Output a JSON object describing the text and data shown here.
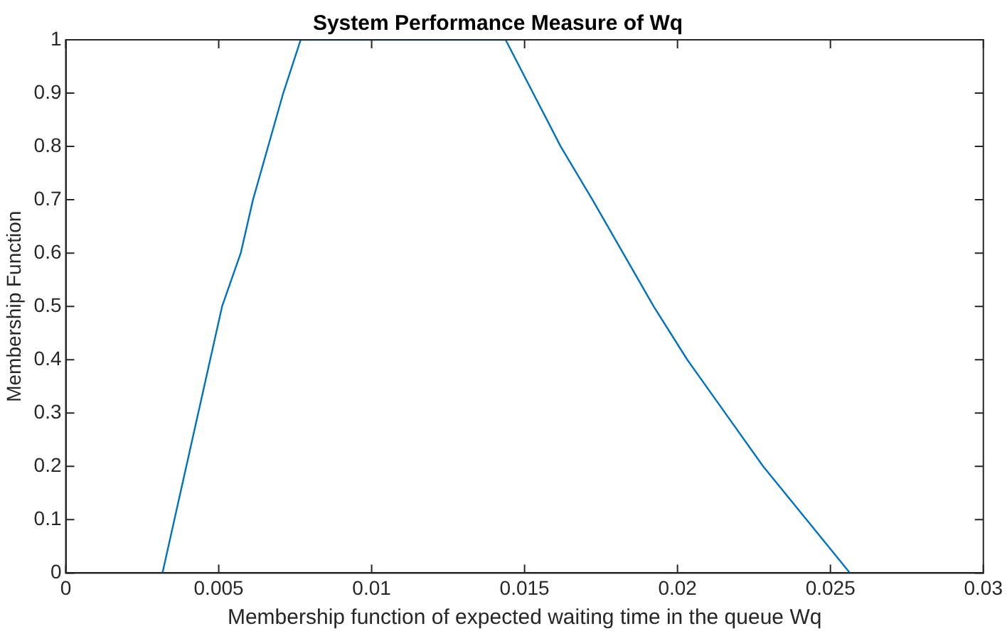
{
  "chart_data": {
    "type": "line",
    "title": "System Performance Measure of Wq",
    "xlabel": "Membership function of expected waiting time in the queue Wq",
    "ylabel": "Membership Function",
    "series": [
      {
        "color": "#0072bd",
        "x": [
          0.00316,
          0.00511,
          0.00572,
          0.00612,
          0.00711,
          0.00768,
          0.01438,
          0.01618,
          0.01722,
          0.01922,
          0.02032,
          0.0228,
          0.02564
        ],
        "values": [
          0,
          0.5,
          0.6,
          0.7,
          0.9,
          1,
          1,
          0.8,
          0.7,
          0.5,
          0.4,
          0.2,
          0
        ]
      }
    ],
    "xlim": [
      0,
      0.03
    ],
    "xticks": [
      0,
      0.005,
      0.01,
      0.015,
      0.02,
      0.025,
      0.03
    ],
    "ylim": [
      0,
      1
    ],
    "yticks": [
      0,
      0.1,
      0.2,
      0.3,
      0.4,
      0.5,
      0.6,
      0.7,
      0.8,
      0.9,
      1
    ],
    "grid": false,
    "legend": false,
    "marker": "none",
    "line_style": "solid"
  }
}
